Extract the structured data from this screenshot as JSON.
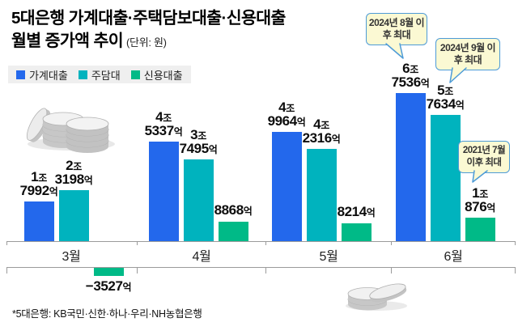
{
  "title": {
    "line1": "5대은행 가계대출·주택담보대출·신용대출",
    "line2": "월별 증가액 추이",
    "unit": "(단위: 원)"
  },
  "legend": [
    {
      "label": "가계대출",
      "color": "#2368EC"
    },
    {
      "label": "주담대",
      "color": "#00B3BE"
    },
    {
      "label": "신용대출",
      "color": "#00BA87"
    }
  ],
  "footnote": "*5대은행: KB국민·신한·하나·우리·NH농협은행",
  "chart_data": {
    "type": "bar",
    "title": "5대은행 가계대출·주택담보대출·신용대출 월별 증가액 추이",
    "unit_label": "(단위: 원)",
    "value_unit": "억 원",
    "categories": [
      "3월",
      "4월",
      "5월",
      "6월"
    ],
    "series": [
      {
        "name": "가계대출",
        "color": "#2368EC",
        "values": [
          17992,
          45337,
          49964,
          67536
        ],
        "labels": [
          "1조 7992억",
          "4조 5337억",
          "4조 9964억",
          "6조 7536억"
        ]
      },
      {
        "name": "주담대",
        "color": "#00B3BE",
        "values": [
          23198,
          37495,
          42316,
          57634
        ],
        "labels": [
          "2조 3198억",
          "3조 7495억",
          "4조 2316억",
          "5조 7634억"
        ]
      },
      {
        "name": "신용대출",
        "color": "#00BA87",
        "values": [
          -3527,
          8868,
          8214,
          10876
        ],
        "labels": [
          "−3527억",
          "8868억",
          "8214억",
          "1조 876억"
        ]
      }
    ],
    "annotations": [
      {
        "text": "2024년 8월 이후 최대",
        "target": "6월 가계대출 6조 7536억"
      },
      {
        "text": "2024년 9월 이후 최대",
        "target": "6월 주담대 5조 7634억"
      },
      {
        "text": "2021년 7월 이후 최대",
        "target": "6월 신용대출 1조 876억"
      }
    ],
    "legend_position": "top-left",
    "grid": false,
    "baseline": 0,
    "notes": "3월 신용대출 값은 음수로 축 아래에 표시됨"
  }
}
